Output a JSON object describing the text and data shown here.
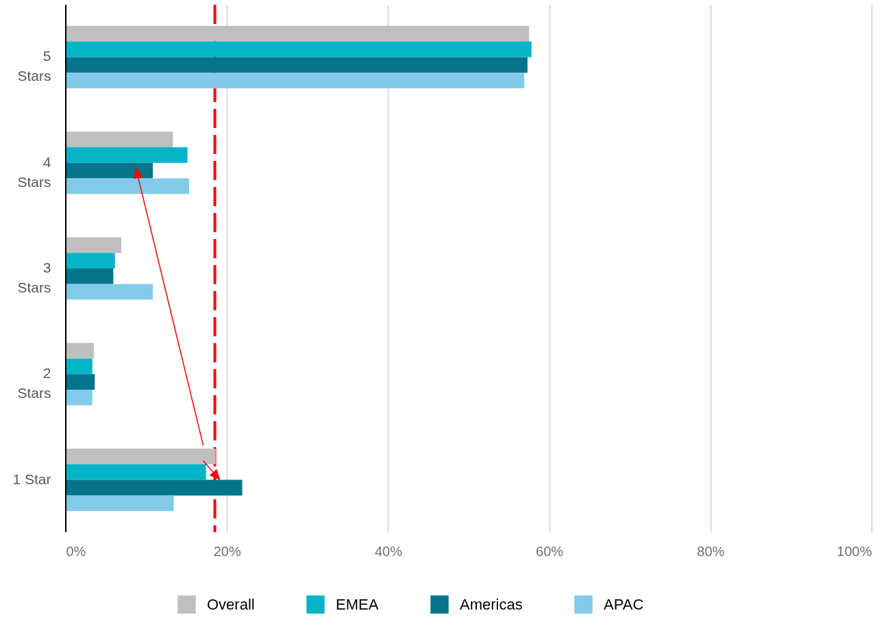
{
  "chart_data": {
    "type": "bar",
    "orientation": "horizontal",
    "categories": [
      "5 Stars",
      "4 Stars",
      "3 Stars",
      "2 Stars",
      "1 Star"
    ],
    "series": [
      {
        "name": "Overall",
        "color": "#bfbfbf",
        "values": [
          57.5,
          13.3,
          6.9,
          3.5,
          18.6
        ]
      },
      {
        "name": "EMEA",
        "color": "#06b4c8",
        "values": [
          57.8,
          15.1,
          6.1,
          3.3,
          17.4
        ]
      },
      {
        "name": "Americas",
        "color": "#05758b",
        "values": [
          57.3,
          10.8,
          5.9,
          3.6,
          21.9
        ]
      },
      {
        "name": "APAC",
        "color": "#83cbe9",
        "values": [
          56.9,
          15.3,
          10.8,
          3.3,
          13.4
        ]
      }
    ],
    "xlim": [
      0,
      100
    ],
    "xticks": [
      {
        "value": 0,
        "label": "0%"
      },
      {
        "value": 20,
        "label": "20%"
      },
      {
        "value": 40,
        "label": "40%"
      },
      {
        "value": 60,
        "label": "60%"
      },
      {
        "value": 80,
        "label": "80%"
      },
      {
        "value": 100,
        "label": "100%"
      }
    ],
    "ref_lines": [
      {
        "axis": "x",
        "value": 18.5,
        "color": "#ff0000",
        "line_style": "dashed"
      }
    ],
    "grid": "x",
    "legend": "bottom"
  }
}
